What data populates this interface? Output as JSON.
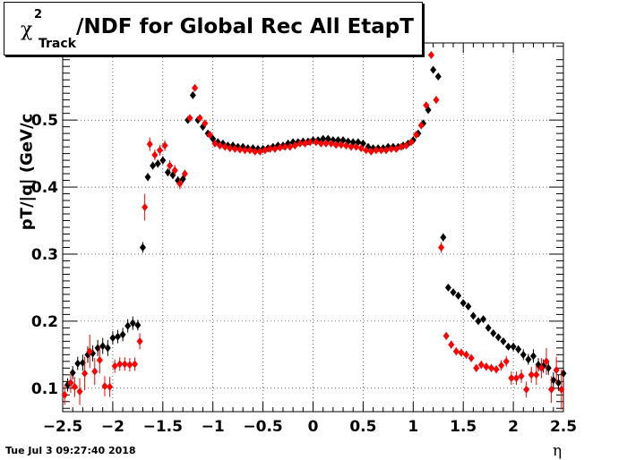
{
  "timestamp": "Tue Jul  3 09:27:40 2018",
  "chart_data": {
    "type": "scatter",
    "title": "/NDF for Global Rec All EtapT",
    "title_symbol": "χ",
    "title_superscript": "2",
    "title_subscript": "Track",
    "xlabel": "η",
    "ylabel": "pT/|q| (GeV/c",
    "xlim": [
      -2.5,
      2.5
    ],
    "ylim": [
      0.065,
      0.615
    ],
    "grid": true,
    "legend": "none",
    "x_ticks": [
      {
        "value": -2.5,
        "label": "−2.5"
      },
      {
        "value": -2,
        "label": "−2"
      },
      {
        "value": -1.5,
        "label": "−1.5"
      },
      {
        "value": -1,
        "label": "−1"
      },
      {
        "value": -0.5,
        "label": "−0.5"
      },
      {
        "value": 0,
        "label": "0"
      },
      {
        "value": 0.5,
        "label": "0.5"
      },
      {
        "value": 1,
        "label": "1"
      },
      {
        "value": 1.5,
        "label": "1.5"
      },
      {
        "value": 2,
        "label": "2"
      },
      {
        "value": 2.5,
        "label": "2.5"
      }
    ],
    "y_ticks": [
      {
        "value": 0.1,
        "label": "0.1"
      },
      {
        "value": 0.2,
        "label": "0.2"
      },
      {
        "value": 0.3,
        "label": "0.3"
      },
      {
        "value": 0.4,
        "label": "0.4"
      },
      {
        "value": 0.5,
        "label": "0.5"
      }
    ],
    "series": [
      {
        "color": "#000000",
        "x": [
          -2.45,
          -2.4,
          -2.35,
          -2.3,
          -2.25,
          -2.2,
          -2.15,
          -2.1,
          -2.05,
          -2.0,
          -1.95,
          -1.9,
          -1.85,
          -1.8,
          -1.75,
          -1.7,
          -1.65,
          -1.6,
          -1.55,
          -1.5,
          -1.45,
          -1.4,
          -1.35,
          -1.3,
          -1.25,
          -1.2,
          -1.15,
          -1.1,
          -1.05,
          -1.0,
          -0.95,
          -0.9,
          -0.85,
          -0.8,
          -0.75,
          -0.7,
          -0.65,
          -0.6,
          -0.55,
          -0.5,
          -0.45,
          -0.4,
          -0.35,
          -0.3,
          -0.25,
          -0.2,
          -0.15,
          -0.1,
          -0.05,
          0.0,
          0.05,
          0.1,
          0.15,
          0.2,
          0.25,
          0.3,
          0.35,
          0.4,
          0.45,
          0.5,
          0.55,
          0.6,
          0.65,
          0.7,
          0.75,
          0.8,
          0.85,
          0.9,
          0.95,
          1.0,
          1.05,
          1.1,
          1.15,
          1.2,
          1.25,
          1.3,
          1.35,
          1.4,
          1.45,
          1.5,
          1.55,
          1.6,
          1.65,
          1.7,
          1.75,
          1.8,
          1.85,
          1.9,
          1.95,
          2.0,
          2.05,
          2.1,
          2.15,
          2.2,
          2.25,
          2.3,
          2.35,
          2.4,
          2.45,
          2.5
        ],
        "y": [
          0.105,
          0.123,
          0.137,
          0.138,
          0.15,
          0.152,
          0.16,
          0.163,
          0.16,
          0.175,
          0.177,
          0.18,
          0.193,
          0.197,
          0.194,
          0.31,
          0.415,
          0.432,
          0.435,
          0.44,
          0.422,
          0.418,
          0.41,
          0.412,
          0.5,
          0.537,
          0.5,
          0.49,
          0.48,
          0.472,
          0.467,
          0.465,
          0.462,
          0.462,
          0.46,
          0.46,
          0.458,
          0.458,
          0.457,
          0.457,
          0.458,
          0.46,
          0.462,
          0.462,
          0.465,
          0.467,
          0.467,
          0.468,
          0.468,
          0.47,
          0.47,
          0.472,
          0.472,
          0.47,
          0.47,
          0.47,
          0.468,
          0.467,
          0.467,
          0.465,
          0.46,
          0.458,
          0.458,
          0.458,
          0.46,
          0.46,
          0.46,
          0.462,
          0.465,
          0.47,
          0.48,
          0.495,
          0.515,
          0.575,
          0.565,
          0.325,
          0.25,
          0.243,
          0.238,
          0.227,
          0.222,
          0.208,
          0.2,
          0.203,
          0.19,
          0.182,
          0.176,
          0.17,
          0.162,
          0.162,
          0.158,
          0.15,
          0.143,
          0.148,
          0.135,
          0.133,
          0.13,
          0.112,
          0.108,
          0.122
        ],
        "err": [
          0.01,
          0.01,
          0.01,
          0.012,
          0.012,
          0.012,
          0.012,
          0.012,
          0.012,
          0.01,
          0.01,
          0.01,
          0.01,
          0.01,
          0.008,
          0.008,
          0.006,
          0.006,
          0.006,
          0.006,
          0.006,
          0.006,
          0.006,
          0.006,
          0.004,
          0.004,
          0.003,
          0.003,
          0.003,
          0.003,
          0.003,
          0.003,
          0.003,
          0.003,
          0.003,
          0.003,
          0.003,
          0.003,
          0.003,
          0.003,
          0.003,
          0.003,
          0.003,
          0.003,
          0.003,
          0.003,
          0.003,
          0.003,
          0.003,
          0.003,
          0.003,
          0.003,
          0.003,
          0.003,
          0.003,
          0.003,
          0.003,
          0.003,
          0.003,
          0.003,
          0.003,
          0.003,
          0.003,
          0.003,
          0.003,
          0.003,
          0.003,
          0.003,
          0.003,
          0.003,
          0.003,
          0.004,
          0.004,
          0.004,
          0.004,
          0.006,
          0.004,
          0.004,
          0.004,
          0.004,
          0.004,
          0.004,
          0.004,
          0.004,
          0.004,
          0.004,
          0.004,
          0.004,
          0.004,
          0.006,
          0.006,
          0.008,
          0.008,
          0.01,
          0.01,
          0.01,
          0.01,
          0.012,
          0.012,
          0.012
        ]
      },
      {
        "color": "#ff0000",
        "x": [
          -2.48,
          -2.42,
          -2.38,
          -2.33,
          -2.28,
          -2.23,
          -2.18,
          -2.13,
          -2.08,
          -2.03,
          -1.98,
          -1.93,
          -1.88,
          -1.83,
          -1.78,
          -1.73,
          -1.68,
          -1.63,
          -1.58,
          -1.53,
          -1.48,
          -1.43,
          -1.38,
          -1.33,
          -1.28,
          -1.23,
          -1.18,
          -1.13,
          -1.08,
          -1.03,
          -0.98,
          -0.93,
          -0.88,
          -0.83,
          -0.78,
          -0.73,
          -0.68,
          -0.63,
          -0.58,
          -0.53,
          -0.48,
          -0.43,
          -0.38,
          -0.33,
          -0.28,
          -0.23,
          -0.18,
          -0.13,
          -0.08,
          -0.03,
          0.03,
          0.08,
          0.13,
          0.18,
          0.23,
          0.28,
          0.33,
          0.38,
          0.43,
          0.48,
          0.53,
          0.58,
          0.63,
          0.68,
          0.73,
          0.78,
          0.83,
          0.88,
          0.93,
          0.98,
          1.03,
          1.08,
          1.13,
          1.18,
          1.23,
          1.28,
          1.33,
          1.38,
          1.43,
          1.48,
          1.53,
          1.58,
          1.63,
          1.68,
          1.73,
          1.78,
          1.83,
          1.88,
          1.93,
          1.98,
          2.03,
          2.08,
          2.13,
          2.18,
          2.23,
          2.28,
          2.33,
          2.38,
          2.43,
          2.48
        ],
        "y": [
          0.09,
          0.108,
          0.102,
          0.095,
          0.122,
          0.155,
          0.125,
          0.142,
          0.103,
          0.102,
          0.133,
          0.136,
          0.136,
          0.135,
          0.136,
          0.17,
          0.37,
          0.464,
          0.448,
          0.455,
          0.462,
          0.432,
          0.425,
          0.405,
          0.42,
          0.503,
          0.548,
          0.503,
          0.495,
          0.478,
          0.465,
          0.462,
          0.46,
          0.458,
          0.457,
          0.456,
          0.455,
          0.455,
          0.453,
          0.453,
          0.455,
          0.457,
          0.457,
          0.459,
          0.46,
          0.46,
          0.462,
          0.465,
          0.465,
          0.467,
          0.467,
          0.465,
          0.465,
          0.465,
          0.463,
          0.463,
          0.462,
          0.46,
          0.46,
          0.458,
          0.455,
          0.453,
          0.455,
          0.455,
          0.455,
          0.457,
          0.457,
          0.46,
          0.462,
          0.467,
          0.478,
          0.492,
          0.522,
          0.597,
          0.53,
          0.31,
          0.178,
          0.165,
          0.155,
          0.153,
          0.15,
          0.145,
          0.13,
          0.135,
          0.132,
          0.13,
          0.128,
          0.134,
          0.14,
          0.115,
          0.115,
          0.118,
          0.098,
          0.12,
          0.12,
          0.13,
          0.14,
          0.098,
          0.127,
          0.098
        ],
        "err": [
          0.015,
          0.015,
          0.015,
          0.02,
          0.025,
          0.025,
          0.02,
          0.02,
          0.015,
          0.015,
          0.01,
          0.01,
          0.01,
          0.01,
          0.01,
          0.012,
          0.02,
          0.01,
          0.008,
          0.008,
          0.008,
          0.008,
          0.008,
          0.008,
          0.006,
          0.005,
          0.004,
          0.004,
          0.003,
          0.003,
          0.003,
          0.003,
          0.003,
          0.003,
          0.003,
          0.003,
          0.003,
          0.003,
          0.003,
          0.003,
          0.003,
          0.003,
          0.003,
          0.003,
          0.003,
          0.003,
          0.003,
          0.003,
          0.003,
          0.003,
          0.003,
          0.003,
          0.003,
          0.003,
          0.003,
          0.003,
          0.003,
          0.003,
          0.003,
          0.003,
          0.003,
          0.003,
          0.003,
          0.003,
          0.003,
          0.003,
          0.003,
          0.003,
          0.003,
          0.003,
          0.004,
          0.004,
          0.004,
          0.004,
          0.006,
          0.008,
          0.006,
          0.006,
          0.006,
          0.006,
          0.006,
          0.006,
          0.006,
          0.006,
          0.006,
          0.006,
          0.006,
          0.008,
          0.008,
          0.01,
          0.01,
          0.01,
          0.012,
          0.012,
          0.015,
          0.015,
          0.02,
          0.02,
          0.02,
          0.03
        ]
      }
    ]
  }
}
